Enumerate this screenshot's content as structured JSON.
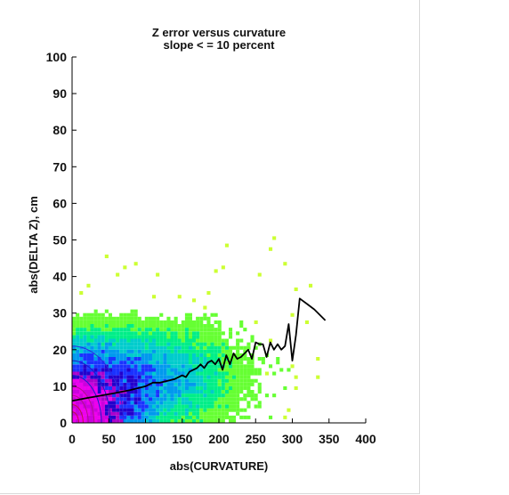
{
  "chart_data": {
    "type": "heatmap",
    "title": "Z error versus curvature",
    "subtitle": "slope < = 10 percent",
    "xlabel": "abs(CURVATURE)",
    "ylabel": "abs(DELTA Z), cm",
    "xlim": [
      0,
      400
    ],
    "ylim": [
      0,
      100
    ],
    "x_ticks": [
      "0",
      "50",
      "100",
      "150",
      "200",
      "250",
      "300",
      "350",
      "400"
    ],
    "y_ticks": [
      "0",
      "10",
      "20",
      "30",
      "40",
      "50",
      "60",
      "70",
      "80",
      "90",
      "100"
    ],
    "grid": false,
    "colors": {
      "mean_line": "#000000",
      "contours": [
        "#2a2ae0",
        "#1a1acc",
        "#b0108a",
        "#c0104a"
      ],
      "density_scale": [
        "#ccff33",
        "#66ff33",
        "#00ee88",
        "#00cccc",
        "#0099ee",
        "#1a33ff",
        "#2200cc",
        "#aa00cc",
        "#ee00ee"
      ]
    },
    "series": [
      {
        "name": "",
        "type": "line",
        "x": [
          0,
          20,
          40,
          60,
          80,
          100,
          110,
          120,
          130,
          140,
          150,
          155,
          160,
          165,
          170,
          175,
          180,
          185,
          190,
          195,
          200,
          205,
          210,
          215,
          220,
          225,
          230,
          235,
          240,
          245,
          250,
          255,
          260,
          265,
          270,
          275,
          280,
          285,
          290,
          295,
          300,
          305,
          310,
          320,
          330,
          345
        ],
        "y": [
          6,
          6.8,
          7.5,
          8.2,
          9,
          10,
          11,
          11,
          11.5,
          12,
          13,
          12.5,
          14,
          14.5,
          15,
          16,
          15,
          16.5,
          17,
          16,
          17.5,
          14.5,
          18.5,
          16,
          19,
          17.5,
          18,
          19,
          20,
          17.5,
          22,
          21.5,
          21.5,
          18,
          22,
          20,
          21.5,
          20,
          21,
          27,
          17,
          24,
          34,
          32.5,
          31,
          28
        ]
      }
    ]
  }
}
